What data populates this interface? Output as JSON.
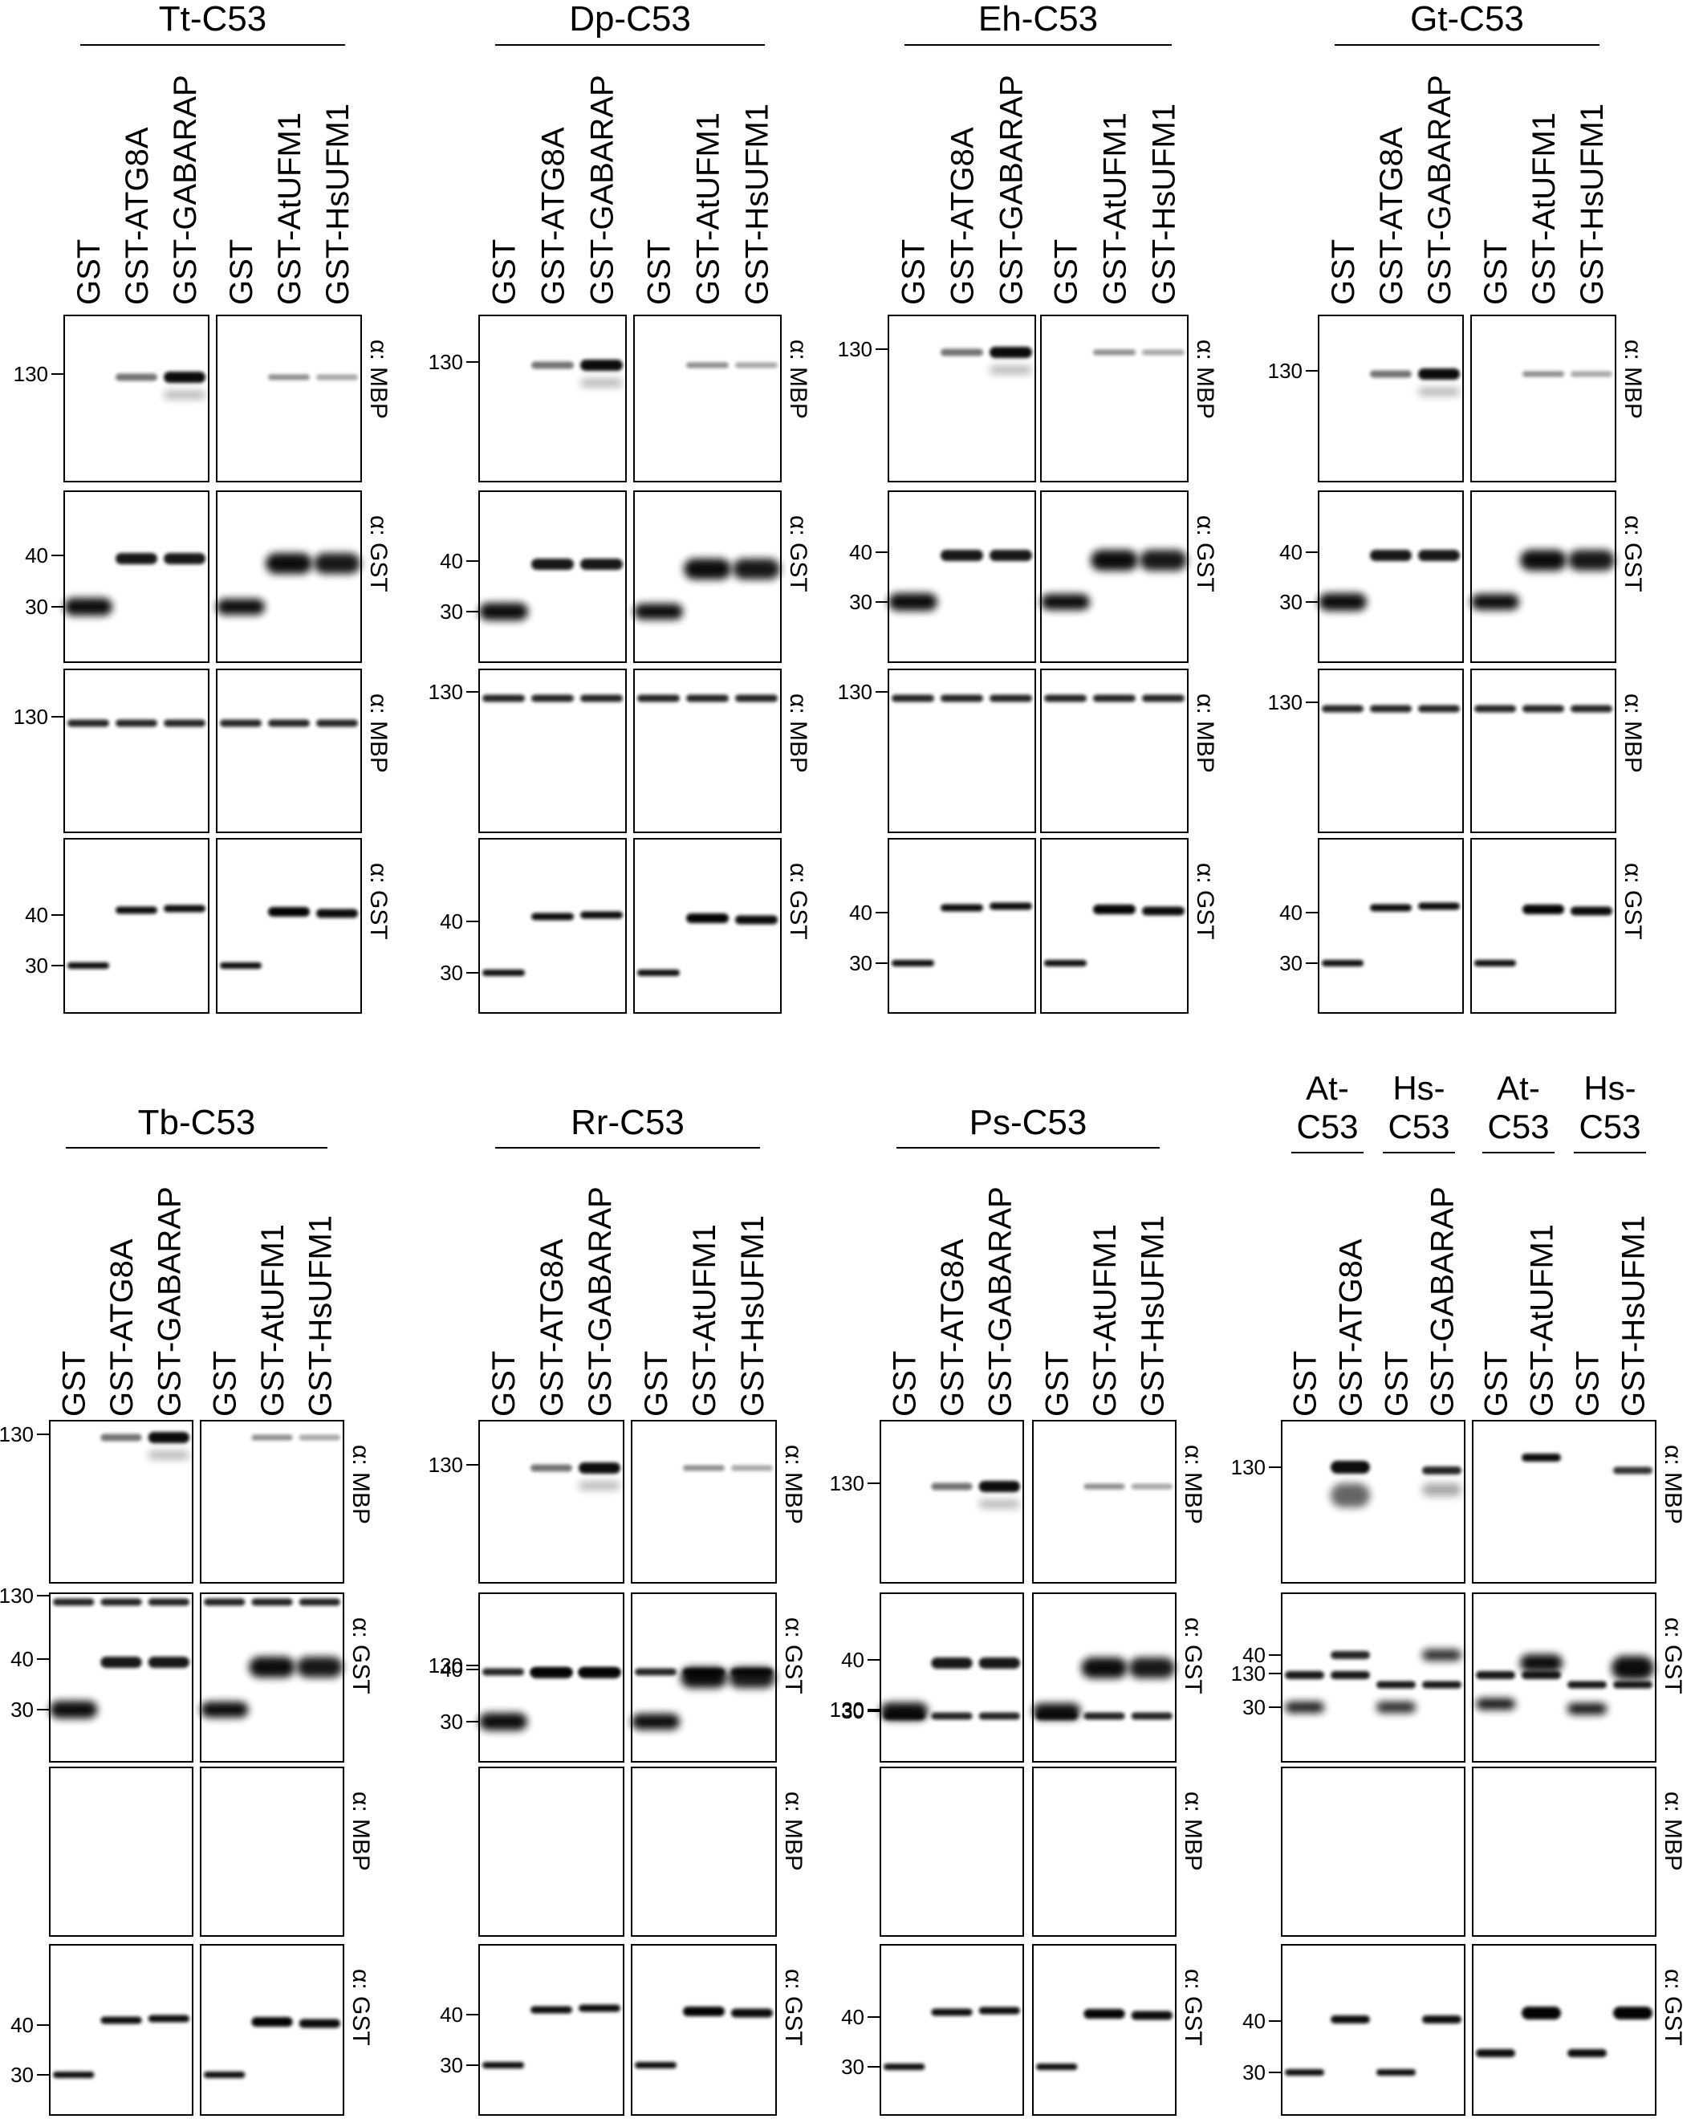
{
  "figure": {
    "antibodies": {
      "mbp": "α: MBP",
      "gst": "α: GST"
    },
    "lanes_standard": [
      "GST",
      "GST-ATG8A",
      "GST-GABARAP",
      "GST",
      "GST-AtUFM1",
      "GST-HsUFM1"
    ],
    "lanes_controls": [
      "GST",
      "GST-ATG8A",
      "GST",
      "GST-GABARAP",
      "GST",
      "GST-AtUFM1",
      "GST",
      "GST-HsUFM1"
    ],
    "control_headers": [
      "At-\nC53",
      "Hs-\nC53",
      "At-\nC53",
      "Hs-\nC53"
    ],
    "marker_labels": {
      "m130": "130",
      "m40": "40",
      "m30": "30"
    },
    "panels": [
      {
        "title": "Tt-C53"
      },
      {
        "title": "Dp-C53"
      },
      {
        "title": "Eh-C53"
      },
      {
        "title": "Gt-C53"
      },
      {
        "title": "Tb-C53"
      },
      {
        "title": "Rr-C53"
      },
      {
        "title": "Ps-C53"
      },
      {
        "title": ""
      }
    ],
    "colors": {
      "ink": "#000000",
      "background": "#ffffff"
    }
  }
}
